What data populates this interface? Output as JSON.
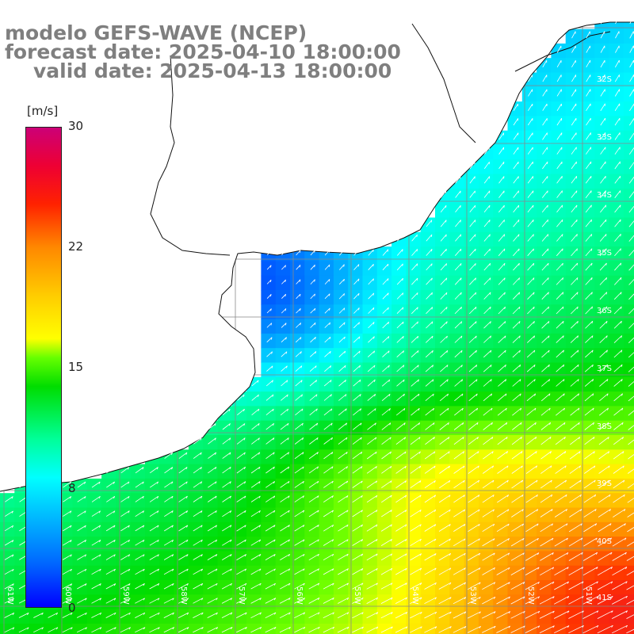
{
  "title": {
    "line1": "modelo GEFS-WAVE (NCEP)",
    "line2": "forecast date: 2025-04-10 18:00:00",
    "line3": "valid date: 2025-04-13 18:00:00"
  },
  "colorbar": {
    "unit": "[m/s]",
    "ticks": [
      "30",
      "22",
      "15",
      "8",
      "0"
    ]
  },
  "lat_labels": [
    "32S",
    "33S",
    "34S",
    "35S",
    "36S",
    "37S",
    "38S",
    "39S",
    "40S",
    "41S"
  ],
  "lon_labels": [
    "61W",
    "60W",
    "59W",
    "58W",
    "57W",
    "56W",
    "55W",
    "54W",
    "53W",
    "52W",
    "51W"
  ],
  "colors": {
    "land": "#ffffff",
    "coast": "#111111",
    "grid": "#888888",
    "arrows": "#ffffff",
    "title": "#7f7f7f"
  }
}
